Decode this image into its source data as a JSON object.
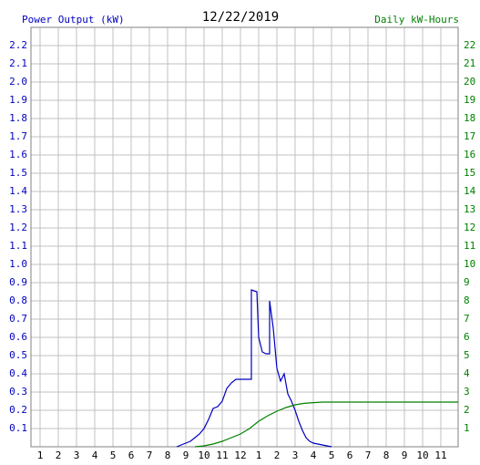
{
  "chart_data": {
    "type": "line",
    "title": "12/22/2019",
    "y_label": "Power Output (kW)",
    "y2_label": "Daily kW-Hours",
    "y_label_color": "#0000c0",
    "y2_label_color": "#008000",
    "xlim": [
      0.5,
      23.95
    ],
    "xticks": [
      1,
      2,
      3,
      4,
      5,
      6,
      7,
      8,
      9,
      10,
      11,
      12,
      {
        "value": 13,
        "label": "1"
      },
      {
        "value": 14,
        "label": "2"
      },
      {
        "value": 15,
        "label": "3"
      },
      {
        "value": 16,
        "label": "4"
      },
      {
        "value": 17,
        "label": "5"
      },
      {
        "value": 18,
        "label": "6"
      },
      {
        "value": 19,
        "label": "7"
      },
      {
        "value": 20,
        "label": "8"
      },
      {
        "value": 21,
        "label": "9"
      },
      {
        "value": 22,
        "label": "10"
      },
      {
        "value": 23,
        "label": "11"
      }
    ],
    "ylim": [
      0,
      2.3
    ],
    "yticks": [
      0.1,
      0.2,
      0.3,
      0.4,
      0.5,
      0.6,
      0.7,
      0.8,
      0.9,
      {
        "value": 1,
        "label": "1.0"
      },
      1.1,
      1.2,
      1.3,
      1.4,
      1.5,
      1.6,
      1.7,
      1.8,
      1.9,
      {
        "value": 2,
        "label": "2.0"
      },
      2.1,
      2.2
    ],
    "y2lim": [
      0,
      23
    ],
    "y2ticks": [
      1,
      2,
      3,
      4,
      5,
      6,
      7,
      8,
      9,
      10,
      11,
      12,
      13,
      14,
      15,
      16,
      17,
      18,
      19,
      20,
      21,
      22
    ],
    "grid": true,
    "series": [
      {
        "color": "#0000c0",
        "axis": "y",
        "x": [
          8.5,
          8.75,
          9.0,
          9.25,
          9.5,
          9.75,
          10.0,
          10.25,
          10.5,
          10.75,
          11.0,
          11.25,
          11.5,
          11.75,
          12.0,
          12.6,
          12.6,
          12.9,
          13.0,
          13.2,
          13.4,
          13.6,
          13.6,
          13.8,
          14.0,
          14.2,
          14.4,
          14.6,
          14.8,
          15.0,
          15.2,
          15.4,
          15.6,
          15.8,
          16.0,
          16.5,
          17.0
        ],
        "values": [
          0.0,
          0.01,
          0.02,
          0.03,
          0.05,
          0.07,
          0.1,
          0.15,
          0.21,
          0.22,
          0.25,
          0.32,
          0.35,
          0.37,
          0.37,
          0.37,
          0.86,
          0.85,
          0.6,
          0.52,
          0.51,
          0.51,
          0.8,
          0.65,
          0.43,
          0.36,
          0.4,
          0.29,
          0.25,
          0.2,
          0.14,
          0.09,
          0.05,
          0.03,
          0.02,
          0.01,
          0.0
        ]
      },
      {
        "color": "#008000",
        "axis": "y2",
        "x": [
          9.5,
          10.0,
          10.5,
          11.0,
          11.5,
          12.0,
          12.5,
          13.0,
          13.5,
          14.0,
          14.5,
          15.0,
          15.5,
          16.0,
          16.5,
          23.95
        ],
        "values": [
          0.0,
          0.05,
          0.15,
          0.3,
          0.5,
          0.7,
          1.0,
          1.4,
          1.7,
          1.95,
          2.15,
          2.3,
          2.38,
          2.42,
          2.45,
          2.45
        ]
      }
    ]
  }
}
